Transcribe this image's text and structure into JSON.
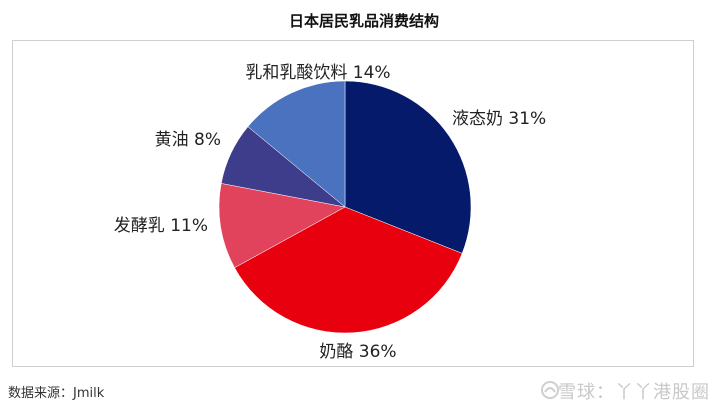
{
  "chart_data": {
    "type": "pie",
    "title": "日本居民乳品消费结构",
    "slices": [
      {
        "label": "液态奶 31%",
        "value": 31,
        "color": "#051a6b"
      },
      {
        "label": "奶酪 36%",
        "value": 36,
        "color": "#e8000f"
      },
      {
        "label": "发酵乳 11%",
        "value": 11,
        "color": "#e2435c"
      },
      {
        "label": "黄油 8%",
        "value": 8,
        "color": "#3d3d8c"
      },
      {
        "label": "乳和乳酸饮料 14%",
        "value": 14,
        "color": "#4a72bf"
      }
    ],
    "start_angle_deg": 0,
    "direction": "clockwise",
    "legend": "none"
  },
  "footer": {
    "source": "数据来源：Jmilk",
    "watermark": "雪球：丫丫港股圈"
  }
}
